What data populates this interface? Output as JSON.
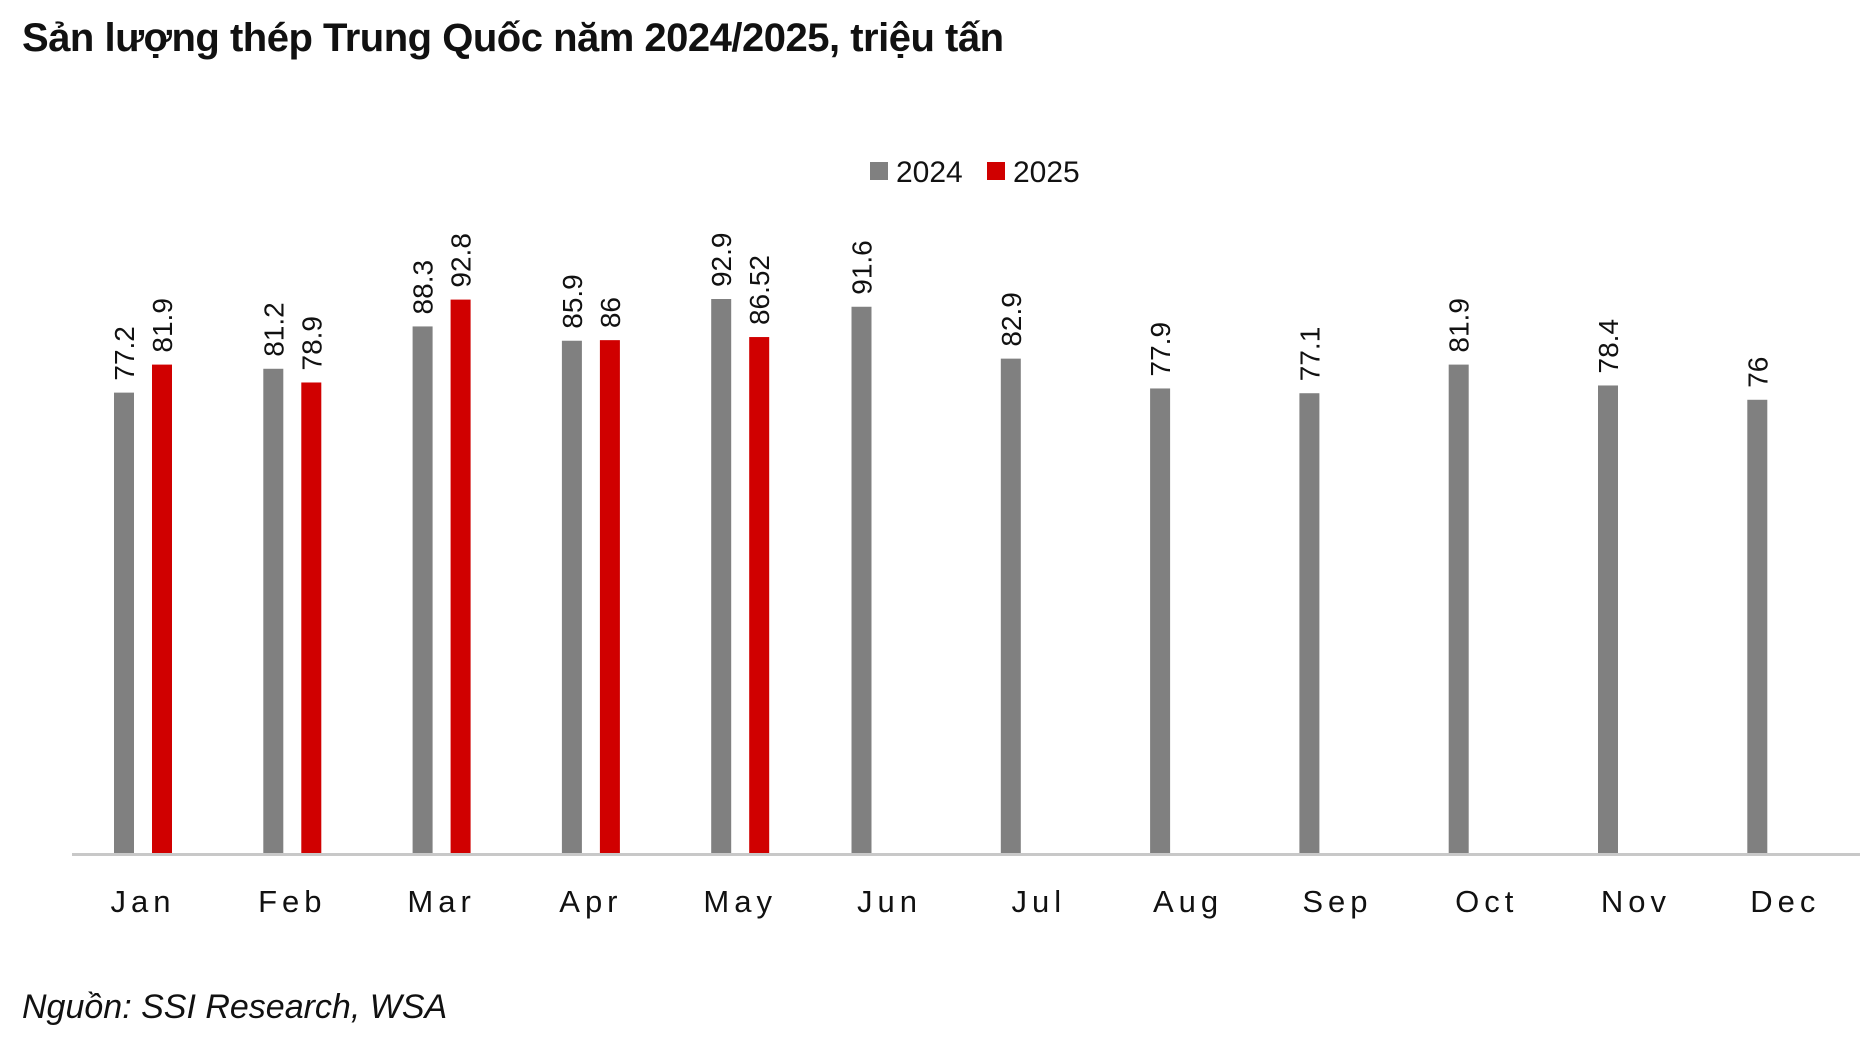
{
  "title": "Sản lượng thép Trung Quốc năm 2024/2025, triệu tấn",
  "source": "Nguồn: SSI Research, WSA",
  "colors": {
    "s2024": "#808080",
    "s2025": "#d00000",
    "axis": "#c8c8c8"
  },
  "chart_data": {
    "type": "bar",
    "title": "Sản lượng thép Trung Quốc năm 2024/2025, triệu tấn",
    "xlabel": "",
    "ylabel": "",
    "categories": [
      "Jan",
      "Feb",
      "Mar",
      "Apr",
      "May",
      "Jun",
      "Jul",
      "Aug",
      "Sep",
      "Oct",
      "Nov",
      "Dec"
    ],
    "series": [
      {
        "name": "2024",
        "values": [
          77.2,
          81.2,
          88.3,
          85.9,
          92.9,
          91.6,
          82.9,
          77.9,
          77.1,
          81.9,
          78.4,
          76
        ]
      },
      {
        "name": "2025",
        "values": [
          81.9,
          78.9,
          92.8,
          86,
          86.52,
          null,
          null,
          null,
          null,
          null,
          null,
          null
        ]
      }
    ],
    "value_labels": {
      "2024": [
        "77.2",
        "81.2",
        "88.3",
        "85.9",
        "92.9",
        "91.6",
        "82.9",
        "77.9",
        "77.1",
        "81.9",
        "78.4",
        "76"
      ],
      "2025": [
        "81.9",
        "78.9",
        "92.8",
        "86",
        "86.52"
      ]
    },
    "ylim": [
      0,
      92.9
    ],
    "grid": false,
    "legend": "top-center"
  }
}
